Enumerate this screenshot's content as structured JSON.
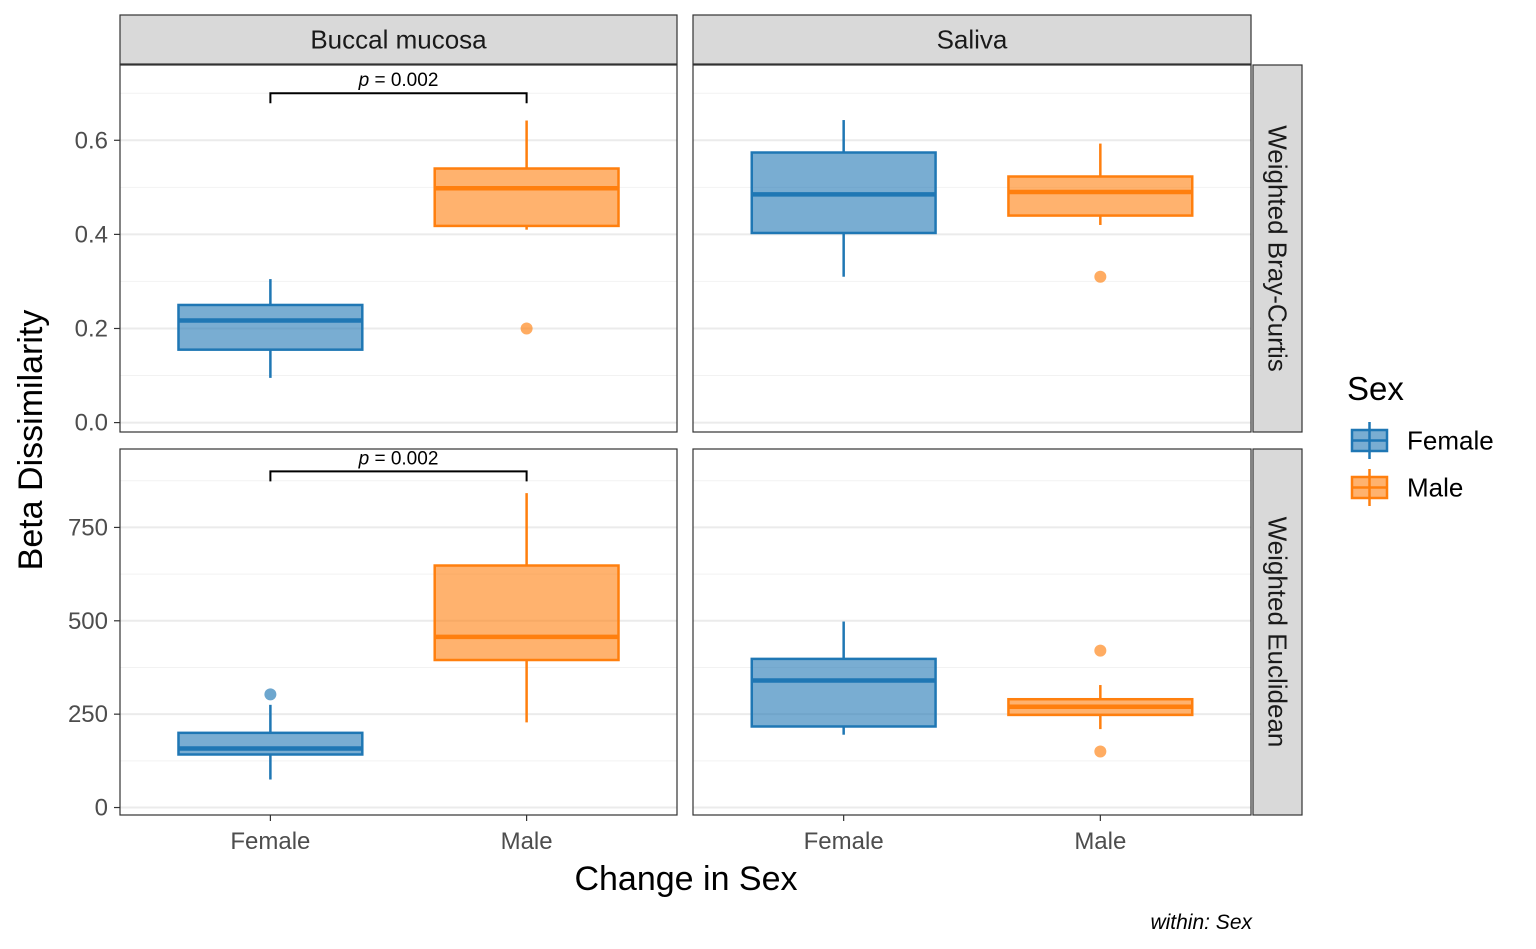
{
  "chart_data": {
    "type": "box",
    "facet_columns": [
      "Buccal mucosa",
      "Saliva"
    ],
    "facet_rows": [
      "Weighted Bray-Curtis",
      "Weighted Euclidean"
    ],
    "xlabel": "Change in Sex",
    "ylabel": "Beta Dissimilarity",
    "caption": "within: Sex",
    "categories": [
      "Female",
      "Male"
    ],
    "legend": {
      "title": "Sex",
      "position": "right",
      "items": [
        {
          "name": "Female",
          "color": "#1f77b4"
        },
        {
          "name": "Male",
          "color": "#ff7f0e"
        }
      ]
    },
    "rows": [
      {
        "metric": "Weighted Bray-Curtis",
        "ylim": [
          -0.02,
          0.76
        ],
        "yticks": [
          0.0,
          0.2,
          0.4,
          0.6
        ],
        "ytick_labels": [
          "0.0",
          "0.2",
          "0.4",
          "0.6"
        ],
        "panels": [
          {
            "site": "Buccal mucosa",
            "boxes": [
              {
                "group": "Female",
                "whisker_low": 0.095,
                "q1": 0.155,
                "median": 0.217,
                "q3": 0.25,
                "whisker_high": 0.305,
                "outliers": []
              },
              {
                "group": "Male",
                "whisker_low": 0.41,
                "q1": 0.418,
                "median": 0.498,
                "q3": 0.54,
                "whisker_high": 0.642,
                "outliers": [
                  0.2
                ]
              }
            ],
            "comparison": {
              "y": 0.7,
              "p_label": "p",
              "p_value": "= 0.002"
            }
          },
          {
            "site": "Saliva",
            "boxes": [
              {
                "group": "Female",
                "whisker_low": 0.31,
                "q1": 0.403,
                "median": 0.485,
                "q3": 0.574,
                "whisker_high": 0.643,
                "outliers": []
              },
              {
                "group": "Male",
                "whisker_low": 0.42,
                "q1": 0.44,
                "median": 0.49,
                "q3": 0.523,
                "whisker_high": 0.593,
                "outliers": [
                  0.31
                ]
              }
            ]
          }
        ]
      },
      {
        "metric": "Weighted Euclidean",
        "ylim": [
          -20,
          960
        ],
        "yticks": [
          0,
          250,
          500,
          750
        ],
        "ytick_labels": [
          "0",
          "250",
          "500",
          "750"
        ],
        "panels": [
          {
            "site": "Buccal mucosa",
            "boxes": [
              {
                "group": "Female",
                "whisker_low": 75,
                "q1": 142,
                "median": 158,
                "q3": 200,
                "whisker_high": 275,
                "outliers": [
                  303
                ]
              },
              {
                "group": "Male",
                "whisker_low": 228,
                "q1": 395,
                "median": 457,
                "q3": 648,
                "whisker_high": 842,
                "outliers": []
              }
            ],
            "comparison": {
              "y": 900,
              "p_label": "p",
              "p_value": "= 0.002"
            }
          },
          {
            "site": "Saliva",
            "boxes": [
              {
                "group": "Female",
                "whisker_low": 195,
                "q1": 217,
                "median": 340,
                "q3": 398,
                "whisker_high": 498,
                "outliers": []
              },
              {
                "group": "Male",
                "whisker_low": 210,
                "q1": 248,
                "median": 270,
                "q3": 290,
                "whisker_high": 328,
                "outliers": [
                  420,
                  150
                ]
              }
            ]
          }
        ]
      }
    ]
  }
}
